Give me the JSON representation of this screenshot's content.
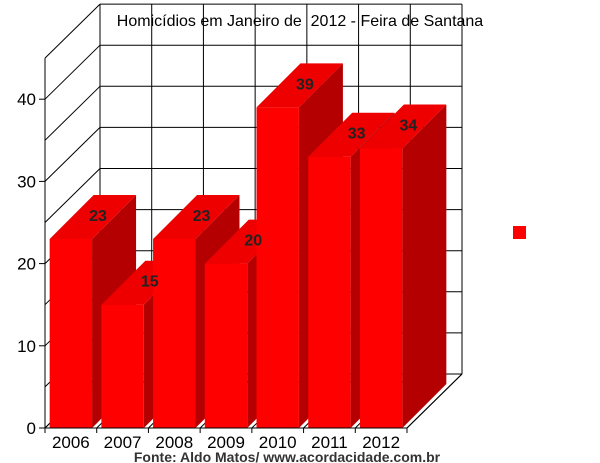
{
  "chart_data": {
    "type": "bar",
    "title": "Homicídios em Janeiro de  2012 - Feira de Santana",
    "categories": [
      "2006",
      "2007",
      "2008",
      "2009",
      "2010",
      "2011",
      "2012"
    ],
    "series": [
      {
        "values": [
          23,
          15,
          23,
          20,
          39,
          33,
          34
        ],
        "color": "#ff0000"
      }
    ],
    "data_labels": [
      "23",
      "15",
      "23",
      "20",
      "39",
      "33",
      "34"
    ],
    "y_ticks": [
      "0",
      "10",
      "20",
      "30",
      "40"
    ],
    "ylim": [
      0,
      45
    ],
    "grid": true,
    "legend_position": "right",
    "xlabel": "",
    "ylabel": ""
  },
  "footer": "Fonte: Aldo Matos/ www.acordacidade.com.br",
  "colors": {
    "bar_front": "#ff0000",
    "bar_side": "#b40000",
    "bar_top": "#ee0000",
    "grid": "#000000"
  }
}
